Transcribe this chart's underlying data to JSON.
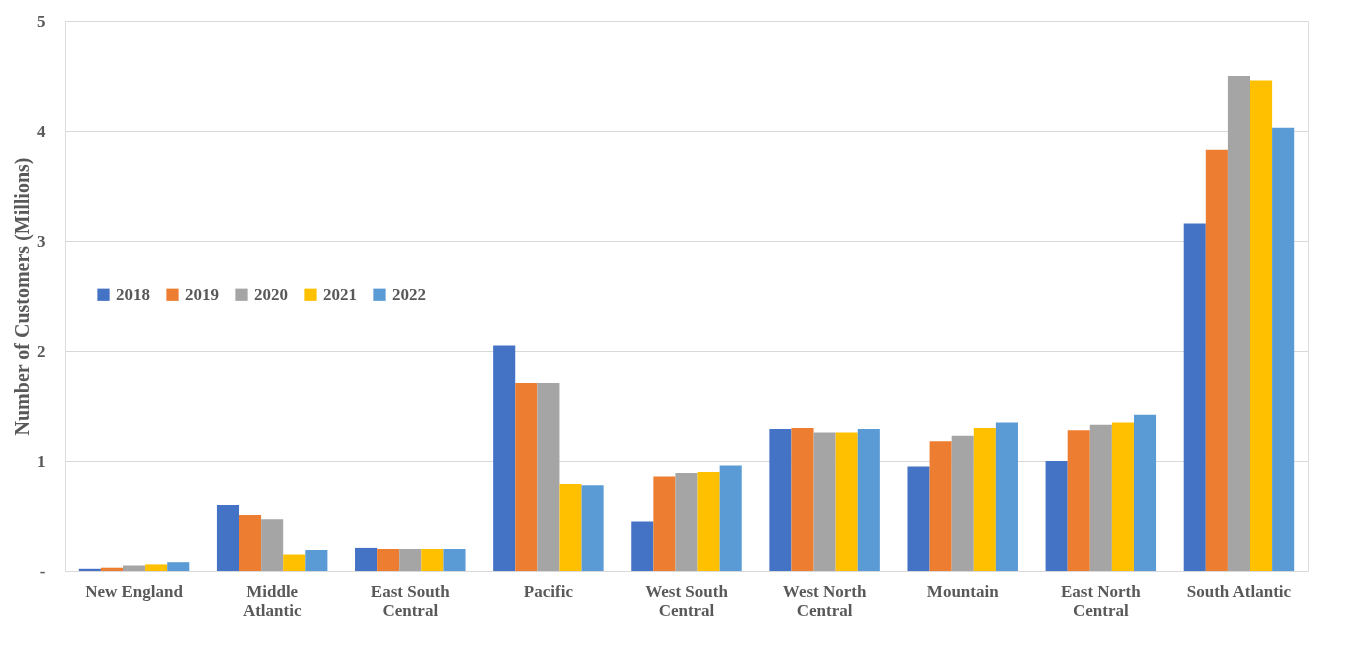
{
  "chart_data": {
    "type": "bar",
    "ylabel": "Number of Customers (Millions)",
    "categories": [
      "New England",
      "Middle Atlantic",
      "East South Central",
      "Pacific",
      "West South Central",
      "West North Central",
      "Mountain",
      "East North Central",
      "South Atlantic"
    ],
    "series": [
      {
        "name": "2018",
        "color": "#4472c4",
        "values": [
          0.02,
          0.6,
          0.21,
          2.05,
          0.45,
          1.29,
          0.95,
          1.0,
          3.16
        ]
      },
      {
        "name": "2019",
        "color": "#ed7d31",
        "values": [
          0.03,
          0.51,
          0.2,
          1.71,
          0.86,
          1.3,
          1.18,
          1.28,
          3.83
        ]
      },
      {
        "name": "2020",
        "color": "#a5a5a5",
        "values": [
          0.05,
          0.47,
          0.2,
          1.71,
          0.89,
          1.26,
          1.23,
          1.33,
          4.5
        ]
      },
      {
        "name": "2021",
        "color": "#ffc000",
        "values": [
          0.06,
          0.15,
          0.2,
          0.79,
          0.9,
          1.26,
          1.3,
          1.35,
          4.46
        ]
      },
      {
        "name": "2022",
        "color": "#5b9bd5",
        "values": [
          0.08,
          0.19,
          0.2,
          0.78,
          0.96,
          1.29,
          1.35,
          1.42,
          4.03
        ]
      }
    ],
    "ylim": [
      0,
      5
    ],
    "yticks": [
      {
        "value": 0,
        "label": "-"
      },
      1,
      2,
      3,
      4,
      5
    ],
    "grid": "y",
    "legend": "left"
  }
}
